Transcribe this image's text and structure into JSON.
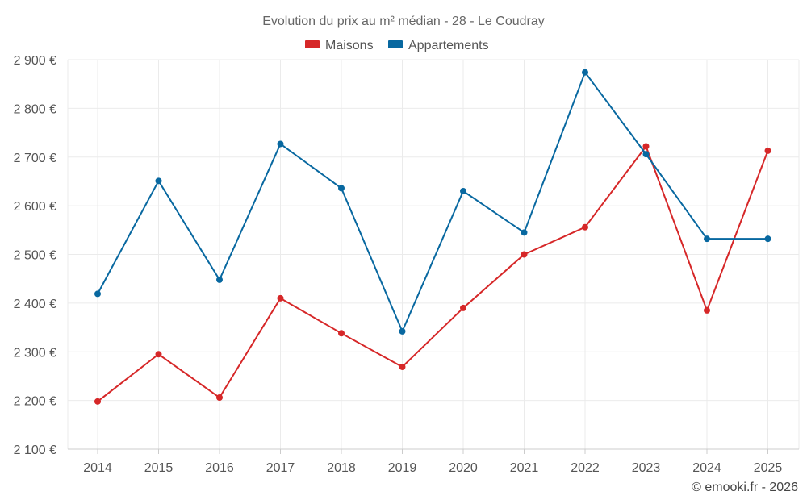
{
  "chart_data": {
    "type": "line",
    "title": "Evolution du prix au m² médian - 28 - Le Coudray",
    "categories": [
      "2014",
      "2015",
      "2016",
      "2017",
      "2018",
      "2019",
      "2020",
      "2021",
      "2022",
      "2023",
      "2024",
      "2025"
    ],
    "ylim": [
      2100,
      2900
    ],
    "yticks": [
      2100,
      2200,
      2300,
      2400,
      2500,
      2600,
      2700,
      2800,
      2900
    ],
    "ytick_labels": [
      "2 100 €",
      "2 200 €",
      "2 300 €",
      "2 400 €",
      "2 500 €",
      "2 600 €",
      "2 700 €",
      "2 800 €",
      "2 900 €"
    ],
    "xlabel": "",
    "ylabel": "",
    "grid": true,
    "legend_position": "top-center",
    "series": [
      {
        "name": "Maisons",
        "color": "#d62728",
        "values": [
          2198,
          2295,
          2206,
          2410,
          2338,
          2269,
          2390,
          2500,
          2556,
          2722,
          2385,
          2713
        ]
      },
      {
        "name": "Appartements",
        "color": "#0868a0",
        "values": [
          2419,
          2651,
          2448,
          2727,
          2636,
          2342,
          2630,
          2545,
          2874,
          2706,
          2532,
          2532
        ]
      }
    ]
  },
  "footer": "© emooki.fr - 2026"
}
